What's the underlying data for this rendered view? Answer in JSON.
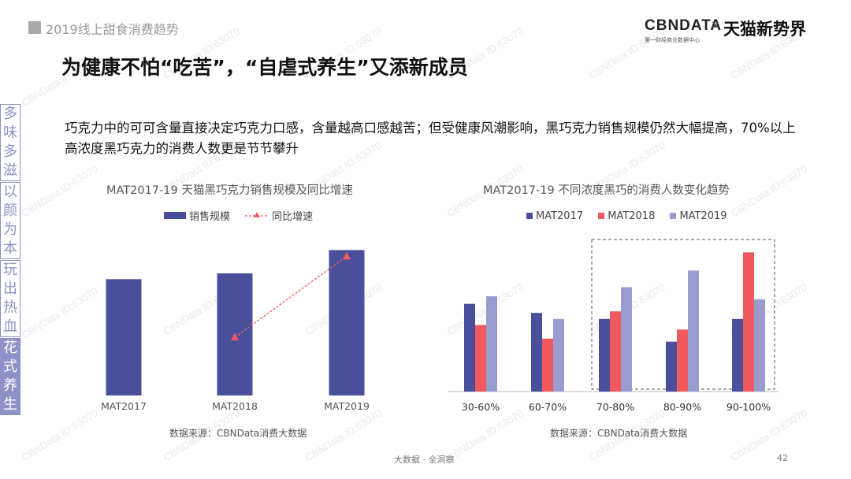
{
  "header": {
    "section_title": "2019线上甜食消费趋势",
    "headline": "为健康不怕“吃苦”，“自虐式养生”又添新成员",
    "brand": {
      "logo": "CBNDATA",
      "logo_sub": "第一财经商业数据中心",
      "separator": "×",
      "partner": "天猫新势界"
    }
  },
  "body_text": "巧克力中的可可含量直接决定巧克力口感，含量越高口感越苦；但受健康风潮影响，黑巧克力销售规模仍然大幅提高，70%以上高浓度黑巧克力的消费人数更是节节攀升",
  "sidebar": [
    {
      "chars": [
        "多",
        "味",
        "多",
        "滋"
      ],
      "active": false
    },
    {
      "chars": [
        "以",
        "颜",
        "为",
        "本"
      ],
      "active": false
    },
    {
      "chars": [
        "玩",
        "出",
        "热",
        "血"
      ],
      "active": false
    },
    {
      "chars": [
        "花",
        "式",
        "养",
        "生"
      ],
      "active": true
    }
  ],
  "watermark": "CBNData ID:63070",
  "colors": {
    "mat2017": "#4a4f9c",
    "mat2018": "#f05a5e",
    "mat2019": "#9a9cd0",
    "sidebar": "#8e90c8",
    "growth": "#f05a5e"
  },
  "chart_data": [
    {
      "type": "bar",
      "title": "MAT2017-19 天猫黑巧克力销售规模及同比增速",
      "categories": [
        "MAT2017",
        "MAT2018",
        "MAT2019"
      ],
      "series": [
        {
          "name": "销售规模",
          "values": [
            100,
            105,
            125
          ],
          "type": "bar"
        },
        {
          "name": "同比增速",
          "values": [
            null,
            5,
            19
          ],
          "type": "line"
        }
      ],
      "legend": "top",
      "source": "数据来源：CBNData消费大数据"
    },
    {
      "type": "bar",
      "title": "MAT2017-19 不同浓度黑巧的消费人数变化趋势",
      "categories": [
        "30-60%",
        "60-70%",
        "70-80%",
        "80-90%",
        "90-100%"
      ],
      "series": [
        {
          "name": "MAT2017",
          "values": [
            58,
            52,
            48,
            33,
            48
          ]
        },
        {
          "name": "MAT2018",
          "values": [
            44,
            35,
            53,
            41,
            92
          ]
        },
        {
          "name": "MAT2019",
          "values": [
            63,
            48,
            69,
            80,
            61
          ]
        }
      ],
      "ylim": [
        0,
        100
      ],
      "legend": "top",
      "highlight_categories": [
        "70-80%",
        "80-90%",
        "90-100%"
      ],
      "source": "数据来源：CBNData消费大数据"
    }
  ],
  "footer": {
    "text": "大数据 · 全洞察",
    "page_number": "42"
  }
}
